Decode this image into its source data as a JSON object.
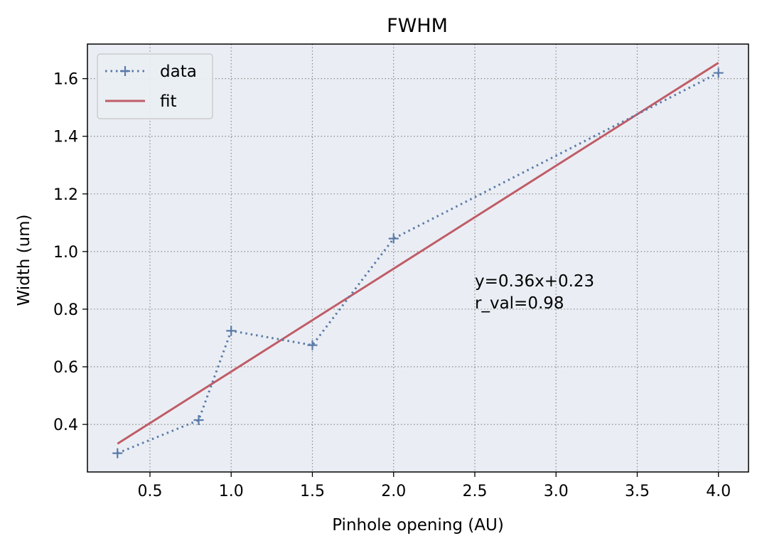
{
  "chart_data": {
    "type": "line",
    "title": "FWHM",
    "xlabel": "Pinhole opening (AU)",
    "ylabel": "Width (um)",
    "xlim": [
      0.115,
      4.185
    ],
    "ylim": [
      0.235,
      1.72
    ],
    "xticks": [
      0.5,
      1.0,
      1.5,
      2.0,
      2.5,
      3.0,
      3.5,
      4.0
    ],
    "xtick_labels": [
      "0.5",
      "1.0",
      "1.5",
      "2.0",
      "2.5",
      "3.0",
      "3.5",
      "4.0"
    ],
    "yticks": [
      0.4,
      0.6,
      0.8,
      1.0,
      1.2,
      1.4,
      1.6
    ],
    "ytick_labels": [
      "0.4",
      "0.6",
      "0.8",
      "1.0",
      "1.2",
      "1.4",
      "1.6"
    ],
    "grid": true,
    "legend": {
      "location": "upper left",
      "entries": [
        "data",
        "fit"
      ]
    },
    "series": [
      {
        "name": "data",
        "style": "dotted",
        "marker": "+",
        "color": "#5b7aa8",
        "x": [
          0.3,
          0.8,
          1.0,
          1.5,
          2.0,
          4.0
        ],
        "y": [
          0.3,
          0.415,
          0.725,
          0.675,
          1.045,
          1.62
        ]
      },
      {
        "name": "fit",
        "style": "solid",
        "color": "#c05c66",
        "x": [
          0.3,
          4.0
        ],
        "y": [
          0.333,
          1.655
        ]
      }
    ],
    "annotations": [
      {
        "text": "y=0.36x+0.23",
        "x": 2.5,
        "y": 0.83
      },
      {
        "text": "r_val=0.98",
        "x": 2.5,
        "y": 0.77
      }
    ],
    "colors": {
      "plot_background": "#eaeef4",
      "grid": "#888888",
      "data_line": "#5b7aa8",
      "fit_line": "#c05c66"
    }
  }
}
